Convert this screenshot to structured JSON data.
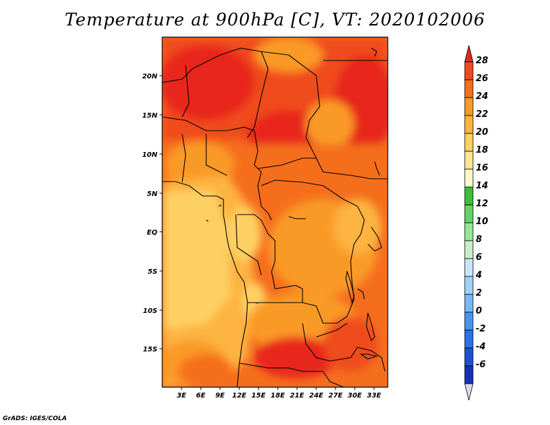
{
  "title": "Temperature at 900hPa [C], VT: 2020102006",
  "credit": "GrADS: IGES/COLA",
  "map": {
    "lon_labels": [
      "3E",
      "6E",
      "9E",
      "12E",
      "15E",
      "18E",
      "21E",
      "24E",
      "27E",
      "30E",
      "33E"
    ],
    "lat_labels": [
      "20N",
      "15N",
      "10N",
      "5N",
      "EQ",
      "5S",
      "10S",
      "15S"
    ]
  },
  "colorbar": {
    "labels": [
      "28",
      "26",
      "24",
      "22",
      "20",
      "18",
      "16",
      "14",
      "12",
      "10",
      "8",
      "6",
      "4",
      "2",
      "0",
      "-2",
      "-4",
      "-6"
    ],
    "colors": [
      "#e8281e",
      "#f04b1e",
      "#f56e1e",
      "#fa9a28",
      "#fdb440",
      "#fed064",
      "#fee696",
      "#fefac8",
      "#3cbe3c",
      "#64d264",
      "#96e696",
      "#c8f0c8",
      "#c8e6fa",
      "#a0d2fa",
      "#78b9f5",
      "#4696f0",
      "#2873e6",
      "#1e50d2",
      "#1432b4",
      "#0a1e82"
    ]
  }
}
